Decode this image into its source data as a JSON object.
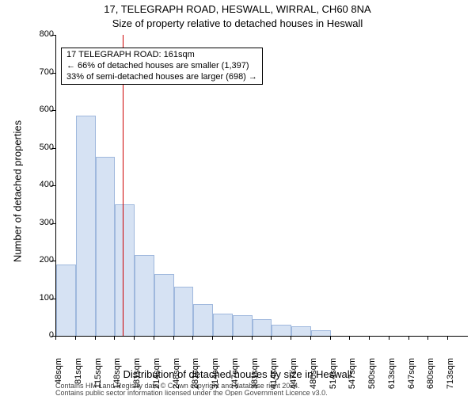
{
  "title_main": "17, TELEGRAPH ROAD, HESWALL, WIRRAL, CH60 8NA",
  "title_sub": "Size of property relative to detached houses in Heswall",
  "ylabel": "Number of detached properties",
  "xlabel": "Distribution of detached houses by size in Heswall",
  "footer_line1": "Contains HM Land Registry data © Crown copyright and database right 2024.",
  "footer_line2": "Contains public sector information licensed under the Open Government Licence v3.0.",
  "chart": {
    "type": "histogram",
    "background_color": "#ffffff",
    "bar_fill": "#d6e2f3",
    "bar_stroke": "#9fb8dd",
    "bar_stroke_width": 1,
    "ref_line_color": "#cc0000",
    "ref_line_width": 1,
    "axis_color": "#000000",
    "label_fontsize": 11,
    "title_fontsize": 13,
    "ylim_max": 800,
    "y_ticks": [
      0,
      100,
      200,
      300,
      400,
      500,
      600,
      700,
      800
    ],
    "x_tick_labels": [
      "48sqm",
      "81sqm",
      "115sqm",
      "148sqm",
      "181sqm",
      "214sqm",
      "248sqm",
      "281sqm",
      "314sqm",
      "347sqm",
      "381sqm",
      "414sqm",
      "447sqm",
      "480sqm",
      "514sqm",
      "547sqm",
      "580sqm",
      "613sqm",
      "647sqm",
      "680sqm",
      "713sqm"
    ],
    "bars": [
      190,
      585,
      475,
      350,
      215,
      165,
      130,
      85,
      60,
      55,
      45,
      30,
      25,
      15,
      0,
      0,
      0,
      0,
      0,
      0,
      0
    ],
    "ref_line_category_index": 3,
    "annotation": {
      "line1": "17 TELEGRAPH ROAD: 161sqm",
      "line2": "← 66% of detached houses are smaller (1,397)",
      "line3": "33% of semi-detached houses are larger (698) →"
    }
  }
}
